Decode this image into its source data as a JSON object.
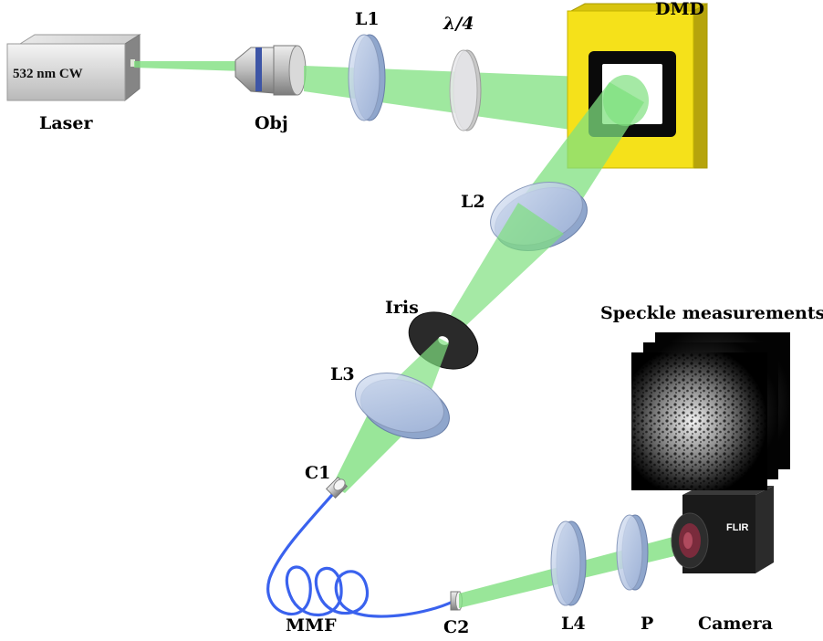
{
  "labels": {
    "laser": "Laser",
    "laser_spec": "532 nm CW",
    "obj": "Obj",
    "l1": "L1",
    "quarter_wave": "λ/4",
    "dmd": "DMD",
    "l2": "L2",
    "iris": "Iris",
    "l3": "L3",
    "c1": "C1",
    "mmf": "MMF",
    "c2": "C2",
    "l4": "L4",
    "p": "P",
    "camera": "Camera",
    "camera_brand": "FLIR",
    "speckle_title": "Speckle measurements"
  },
  "colors": {
    "beam": "#7fe07f",
    "fiber": "#3a62ee",
    "dmd_frame": "#f5e11a",
    "lens": "#b8c8e6",
    "camera_body": "#1a1a1a"
  }
}
